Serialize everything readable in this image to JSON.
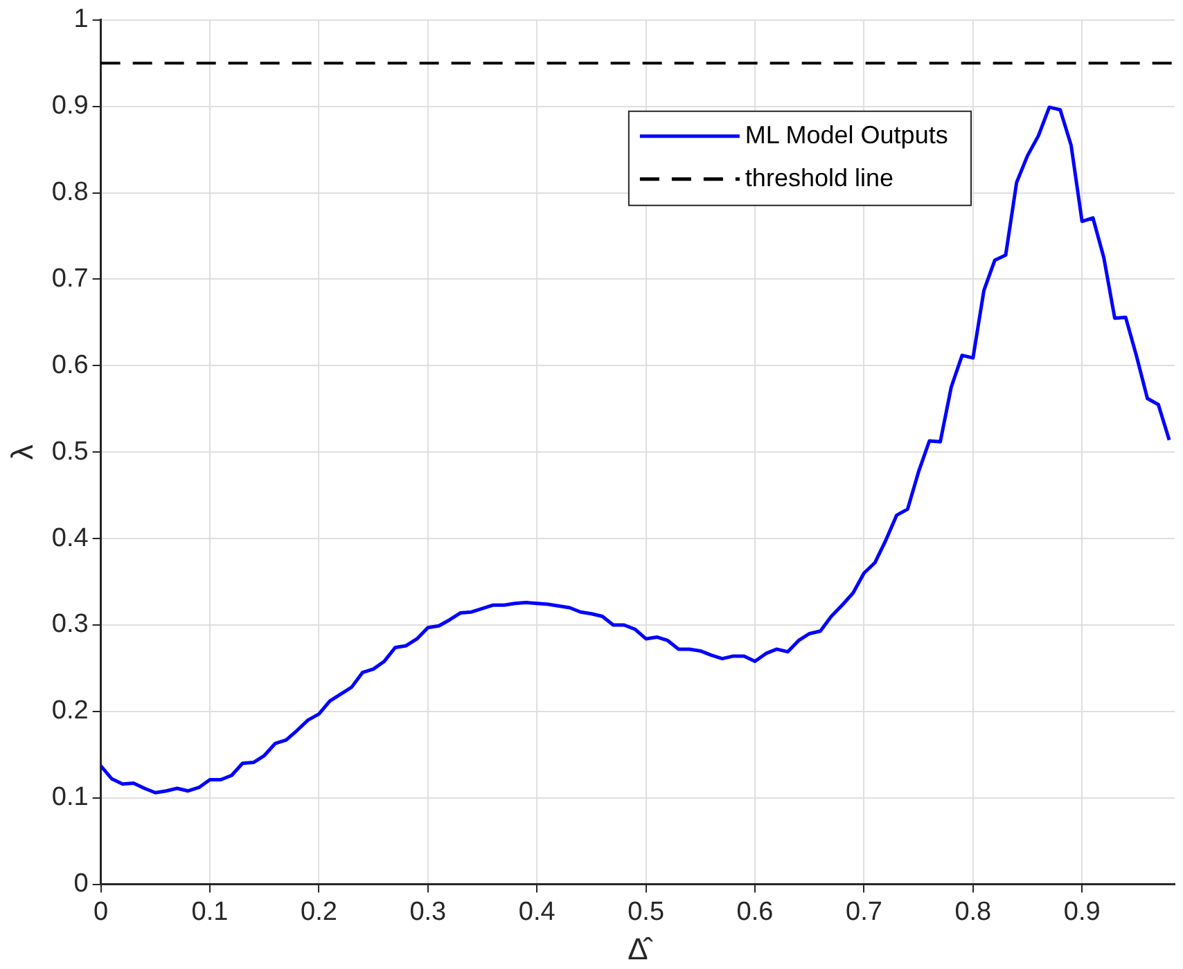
{
  "chart_data": {
    "type": "line",
    "xlabel": "Δ̂",
    "ylabel": "λ",
    "x": [
      0,
      0.01,
      0.02,
      0.03,
      0.04,
      0.05,
      0.06,
      0.07,
      0.08,
      0.09,
      0.1,
      0.11,
      0.12,
      0.13,
      0.14,
      0.15,
      0.16,
      0.17,
      0.18,
      0.19,
      0.2,
      0.21,
      0.22,
      0.23,
      0.24,
      0.25,
      0.26,
      0.27,
      0.28,
      0.29,
      0.3,
      0.31,
      0.32,
      0.33,
      0.34,
      0.35,
      0.36,
      0.37,
      0.38,
      0.39,
      0.4,
      0.41,
      0.42,
      0.43,
      0.44,
      0.45,
      0.46,
      0.47,
      0.48,
      0.49,
      0.5,
      0.51,
      0.52,
      0.53,
      0.54,
      0.55,
      0.56,
      0.57,
      0.58,
      0.59,
      0.6,
      0.61,
      0.62,
      0.63,
      0.64,
      0.65,
      0.66,
      0.67,
      0.68,
      0.69,
      0.7,
      0.71,
      0.72,
      0.73,
      0.74,
      0.75,
      0.76,
      0.77,
      0.78,
      0.79,
      0.8,
      0.81,
      0.82,
      0.83,
      0.84,
      0.85,
      0.86,
      0.87,
      0.88,
      0.89,
      0.9,
      0.91,
      0.92,
      0.93,
      0.94,
      0.95,
      0.96,
      0.97,
      0.98
    ],
    "series": [
      {
        "name": "ML Model Outputs",
        "color": "#0000ff",
        "values": [
          0.137,
          0.122,
          0.116,
          0.117,
          0.111,
          0.106,
          0.108,
          0.111,
          0.108,
          0.112,
          0.121,
          0.121,
          0.126,
          0.14,
          0.141,
          0.149,
          0.163,
          0.167,
          0.178,
          0.19,
          0.197,
          0.212,
          0.22,
          0.228,
          0.245,
          0.249,
          0.258,
          0.274,
          0.276,
          0.284,
          0.297,
          0.299,
          0.306,
          0.314,
          0.315,
          0.319,
          0.323,
          0.323,
          0.325,
          0.326,
          0.325,
          0.324,
          0.322,
          0.32,
          0.315,
          0.313,
          0.31,
          0.3,
          0.3,
          0.295,
          0.284,
          0.286,
          0.282,
          0.272,
          0.272,
          0.27,
          0.265,
          0.261,
          0.264,
          0.264,
          0.258,
          0.267,
          0.272,
          0.269,
          0.282,
          0.29,
          0.293,
          0.31,
          0.323,
          0.337,
          0.36,
          0.372,
          0.398,
          0.427,
          0.434,
          0.477,
          0.513,
          0.512,
          0.575,
          0.612,
          0.609,
          0.687,
          0.722,
          0.728,
          0.812,
          0.843,
          0.866,
          0.899,
          0.896,
          0.855,
          0.767,
          0.771,
          0.725,
          0.655,
          0.656,
          0.611,
          0.562,
          0.555,
          0.514
        ]
      }
    ],
    "ref_lines": [
      {
        "axis": "y",
        "value": 0.95,
        "label": "threshold line",
        "color": "#000000",
        "line_style": "dashed"
      }
    ],
    "xlim": [
      0,
      0.985
    ],
    "xticks": [
      0,
      0.1,
      0.2,
      0.3,
      0.4,
      0.5,
      0.6,
      0.7,
      0.8,
      0.9
    ],
    "ylim": [
      0,
      1
    ],
    "yticks": [
      0,
      0.1,
      0.2,
      0.3,
      0.4,
      0.5,
      0.6,
      0.7,
      0.8,
      0.9,
      1
    ],
    "grid": true,
    "legend": "top right",
    "line_style": "solid",
    "marker": "none"
  }
}
